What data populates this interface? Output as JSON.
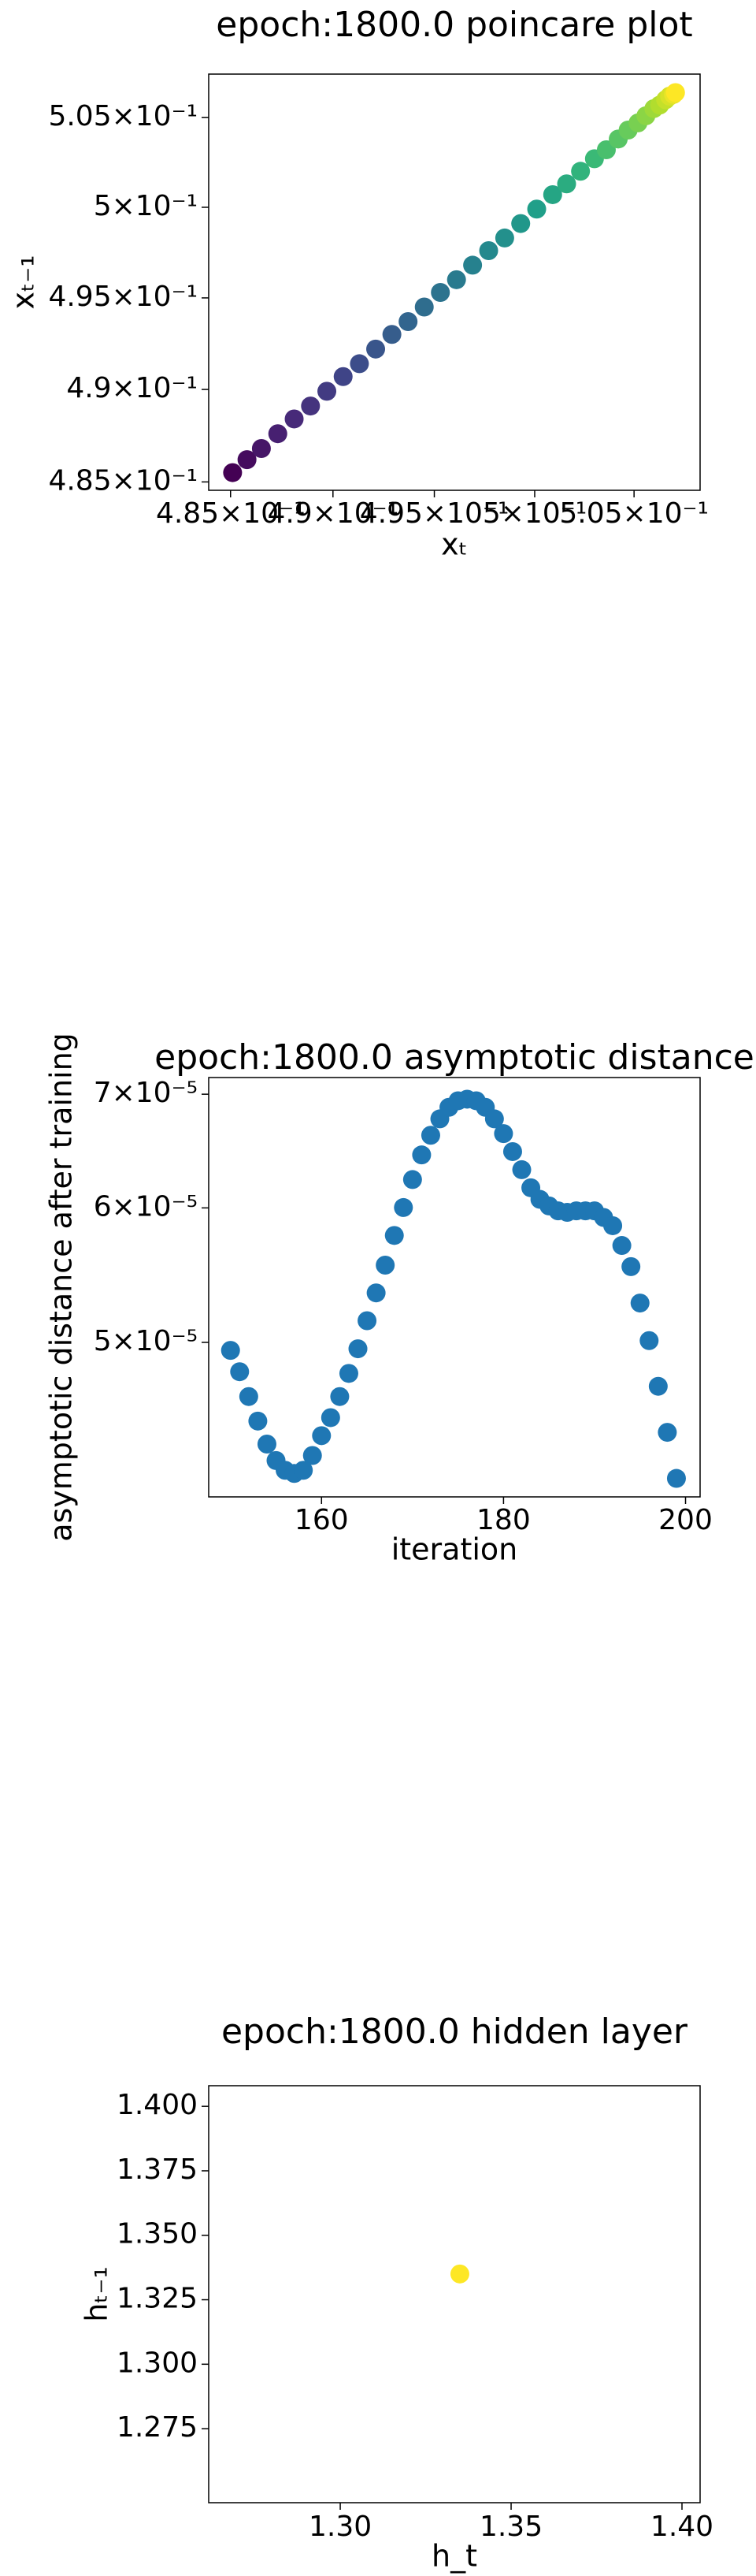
{
  "chart_data": [
    {
      "type": "scatter",
      "title": "epoch:1800.0 poincare plot",
      "x_label": "xₜ",
      "y_label": "xₜ₋₁",
      "log_x": true,
      "log_y": true,
      "colormap": "viridis",
      "x": [
        0.4851,
        0.4858,
        0.4865,
        0.4873,
        0.4881,
        0.4889,
        0.4897,
        0.4905,
        0.4913,
        0.4921,
        0.4929,
        0.4937,
        0.4945,
        0.4953,
        0.4961,
        0.4969,
        0.4977,
        0.4985,
        0.4993,
        0.5001,
        0.5009,
        0.5016,
        0.5023,
        0.503,
        0.5036,
        0.5042,
        0.5047,
        0.5052,
        0.5056,
        0.506,
        0.5063,
        0.5066,
        0.5068,
        0.507,
        0.5071
      ],
      "values": [
        0.4855,
        0.4862,
        0.4868,
        0.4876,
        0.4884,
        0.4891,
        0.4899,
        0.4907,
        0.4914,
        0.4922,
        0.493,
        0.4937,
        0.4945,
        0.4953,
        0.496,
        0.4968,
        0.4976,
        0.4983,
        0.4991,
        0.4999,
        0.5007,
        0.5013,
        0.502,
        0.5027,
        0.5032,
        0.5038,
        0.5043,
        0.5047,
        0.5051,
        0.5055,
        0.5057,
        0.506,
        0.5062,
        0.5063,
        0.5064
      ],
      "xlim": [
        0.48394,
        0.50835
      ],
      "ylim": [
        0.48455,
        0.50744
      ],
      "xticks": [
        {
          "value": 0.485,
          "label": "4.85×10⁻¹"
        },
        {
          "value": 0.49,
          "label": "4.9×10⁻¹"
        },
        {
          "value": 0.495,
          "label": "4.95×10⁻¹"
        },
        {
          "value": 0.5,
          "label": "5×10⁻¹"
        },
        {
          "value": 0.505,
          "label": "5.05×10⁻¹"
        }
      ],
      "yticks": [
        {
          "value": 0.485,
          "label": "4.85×10⁻¹"
        },
        {
          "value": 0.49,
          "label": "4.9×10⁻¹"
        },
        {
          "value": 0.495,
          "label": "4.95×10⁻¹"
        },
        {
          "value": 0.5,
          "label": "5×10⁻¹"
        },
        {
          "value": 0.505,
          "label": "5.05×10⁻¹"
        }
      ]
    },
    {
      "type": "scatter",
      "title": "epoch:1800.0 asymptotic distance",
      "x_label": "iteration",
      "y_label": "asymptotic distance after training",
      "log_x": false,
      "log_y": true,
      "color": "#1f77b4",
      "x": [
        150,
        151,
        152,
        153,
        154,
        155,
        156,
        157,
        158,
        159,
        160,
        161,
        162,
        163,
        164,
        165,
        166,
        167,
        168,
        169,
        170,
        171,
        172,
        173,
        174,
        175,
        176,
        177,
        178,
        179,
        180,
        181,
        182,
        183,
        184,
        185,
        186,
        187,
        188,
        189,
        190,
        191,
        192,
        193,
        194,
        195,
        196,
        197,
        198,
        199
      ],
      "values": [
        4.946e-05,
        4.805e-05,
        4.646e-05,
        4.494e-05,
        4.356e-05,
        4.26e-05,
        4.204e-05,
        4.186e-05,
        4.204e-05,
        4.289e-05,
        4.406e-05,
        4.515e-05,
        4.646e-05,
        4.794e-05,
        4.957e-05,
        5.149e-05,
        5.347e-05,
        5.552e-05,
        5.78e-05,
        6.003e-05,
        6.235e-05,
        6.447e-05,
        6.621e-05,
        6.77e-05,
        6.877e-05,
        6.938e-05,
        6.953e-05,
        6.938e-05,
        6.877e-05,
        6.77e-05,
        6.636e-05,
        6.476e-05,
        6.319e-05,
        6.166e-05,
        6.07e-05,
        6.016e-05,
        5.976e-05,
        5.964e-05,
        5.976e-05,
        5.976e-05,
        5.976e-05,
        5.923e-05,
        5.857e-05,
        5.702e-05,
        5.541e-05,
        5.274e-05,
        5.012e-05,
        4.711e-05,
        4.426e-05,
        4.158e-05
      ],
      "xlim": [
        147.6,
        201.6
      ],
      "ylim": [
        4.055e-05,
        7.16e-05
      ],
      "xticks": [
        160,
        180,
        200
      ],
      "yticks": [
        {
          "value": 5e-05,
          "label": "5×10⁻⁵"
        },
        {
          "value": 6e-05,
          "label": "6×10⁻⁵"
        },
        {
          "value": 7e-05,
          "label": "7×10⁻⁵"
        }
      ]
    },
    {
      "type": "scatter",
      "title": "epoch:1800.0 hidden layer",
      "x_label": "h_t",
      "y_label": "hₜ₋₁",
      "log_x": false,
      "log_y": false,
      "color": "#fde725",
      "x": [
        1.335
      ],
      "values": [
        1.335
      ],
      "xlim": [
        1.2615,
        1.4053
      ],
      "ylim": [
        1.2463,
        1.408
      ],
      "xticks": [
        {
          "value": 1.3,
          "label": "1.30"
        },
        1.35,
        {
          "value": 1.4,
          "label": "1.40"
        }
      ],
      "yticks": [
        1.275,
        {
          "value": 1.3,
          "label": "1.300"
        },
        1.325,
        {
          "value": 1.35,
          "label": "1.350"
        },
        1.375,
        {
          "value": 1.4,
          "label": "1.400"
        }
      ]
    }
  ]
}
